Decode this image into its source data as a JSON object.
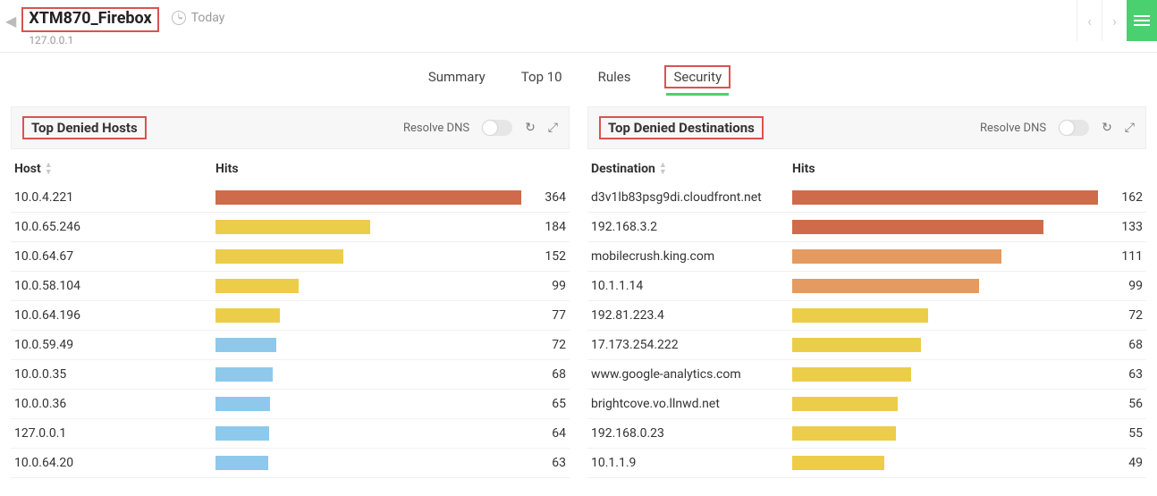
{
  "header": {
    "device_name": "XTM870_Firebox",
    "device_ip": "127.0.0.1",
    "time_range": "Today"
  },
  "tabs": {
    "items": [
      "Summary",
      "Top 10",
      "Rules",
      "Security"
    ],
    "active_index": 3
  },
  "colors": {
    "highlight_border": "#d9534f",
    "active_underline": "#4bd070",
    "row_border": "#f1f1f1",
    "panel_head_bg": "#f7f7f7"
  },
  "panels": [
    {
      "title": "Top Denied Hosts",
      "resolve_label": "Resolve DNS",
      "columns": {
        "label": "Host",
        "hits": "Hits"
      },
      "max": 364,
      "rows": [
        {
          "label": "10.0.4.221",
          "value": 364,
          "color": "#cf6b4b"
        },
        {
          "label": "10.0.65.246",
          "value": 184,
          "color": "#eccd4a"
        },
        {
          "label": "10.0.64.67",
          "value": 152,
          "color": "#eccd4a"
        },
        {
          "label": "10.0.58.104",
          "value": 99,
          "color": "#eccd4a"
        },
        {
          "label": "10.0.64.196",
          "value": 77,
          "color": "#eccd4a"
        },
        {
          "label": "10.0.59.49",
          "value": 72,
          "color": "#8ec9ec"
        },
        {
          "label": "10.0.0.35",
          "value": 68,
          "color": "#8ec9ec"
        },
        {
          "label": "10.0.0.36",
          "value": 65,
          "color": "#8ec9ec"
        },
        {
          "label": "127.0.0.1",
          "value": 64,
          "color": "#8ec9ec"
        },
        {
          "label": "10.0.64.20",
          "value": 63,
          "color": "#8ec9ec"
        }
      ]
    },
    {
      "title": "Top Denied Destinations",
      "resolve_label": "Resolve DNS",
      "columns": {
        "label": "Destination",
        "hits": "Hits"
      },
      "max": 162,
      "rows": [
        {
          "label": "d3v1lb83psg9di.cloudfront.net",
          "value": 162,
          "color": "#cf6b4b"
        },
        {
          "label": "192.168.3.2",
          "value": 133,
          "color": "#cf6b4b"
        },
        {
          "label": "mobilecrush.king.com",
          "value": 111,
          "color": "#e59a5f"
        },
        {
          "label": "10.1.1.14",
          "value": 99,
          "color": "#e59a5f"
        },
        {
          "label": "192.81.223.4",
          "value": 72,
          "color": "#eccd4a"
        },
        {
          "label": "17.173.254.222",
          "value": 68,
          "color": "#eccd4a"
        },
        {
          "label": "www.google-analytics.com",
          "value": 63,
          "color": "#eccd4a"
        },
        {
          "label": "brightcove.vo.llnwd.net",
          "value": 56,
          "color": "#eccd4a"
        },
        {
          "label": "192.168.0.23",
          "value": 55,
          "color": "#eccd4a"
        },
        {
          "label": "10.1.1.9",
          "value": 49,
          "color": "#eccd4a"
        }
      ]
    }
  ]
}
